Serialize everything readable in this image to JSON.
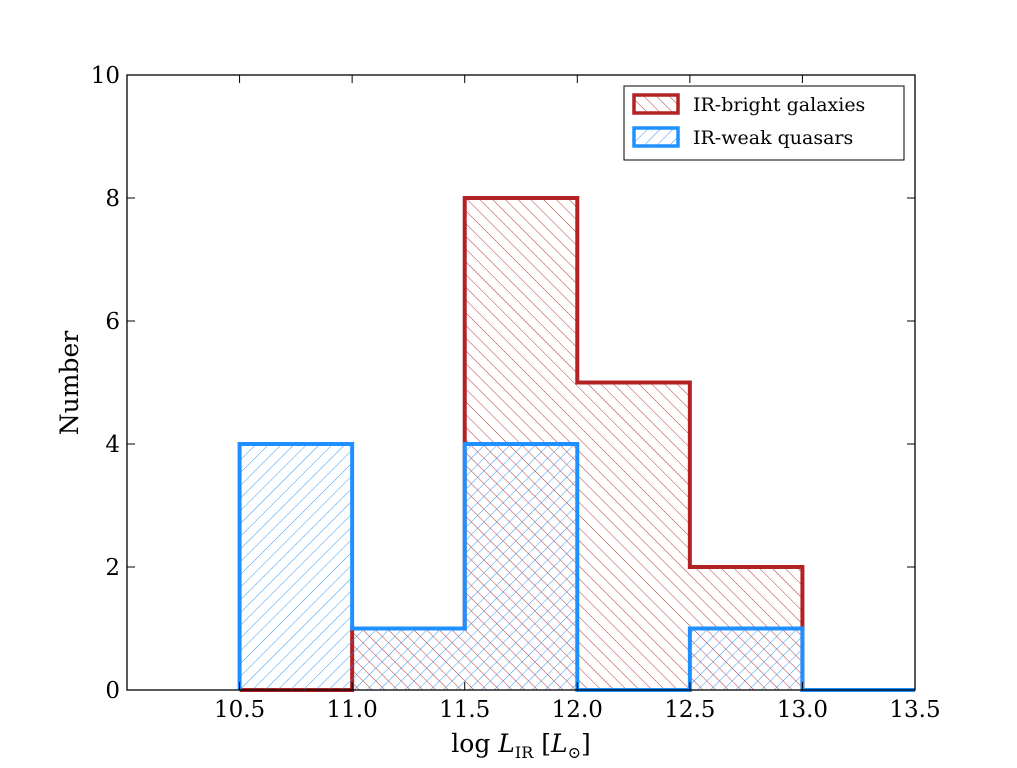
{
  "chart_data": {
    "type": "histogram",
    "xlabel_prefix": "log ",
    "xlabel_var": "L",
    "xlabel_sub": "IR",
    "xlabel_bracket_open": " [",
    "xlabel_unit": "L",
    "xlabel_unit_sub": "⊙",
    "xlabel_bracket_close": "]",
    "ylabel": "Number",
    "xlim": [
      10.0,
      13.5
    ],
    "ylim": [
      0,
      10
    ],
    "xticks": [
      10.5,
      11.0,
      11.5,
      12.0,
      12.5,
      13.0,
      13.5
    ],
    "xtick_labels": [
      "10.5",
      "11.0",
      "11.5",
      "12.0",
      "12.5",
      "13.0",
      "13.5"
    ],
    "yticks": [
      0,
      2,
      4,
      6,
      8,
      10
    ],
    "ytick_labels": [
      "0",
      "2",
      "4",
      "6",
      "8",
      "10"
    ],
    "bin_edges": [
      10.5,
      11.0,
      11.5,
      12.0,
      12.5,
      13.0,
      13.5
    ],
    "series": [
      {
        "name": "IR-bright galaxies",
        "color": "#b22222",
        "hatch": "backslash",
        "values": [
          0,
          1,
          8,
          5,
          2,
          0
        ]
      },
      {
        "name": "IR-weak quasars",
        "color": "#1e90ff",
        "hatch": "slash",
        "values": [
          4,
          1,
          4,
          0,
          1,
          0
        ]
      }
    ],
    "legend_position": "top-right"
  }
}
